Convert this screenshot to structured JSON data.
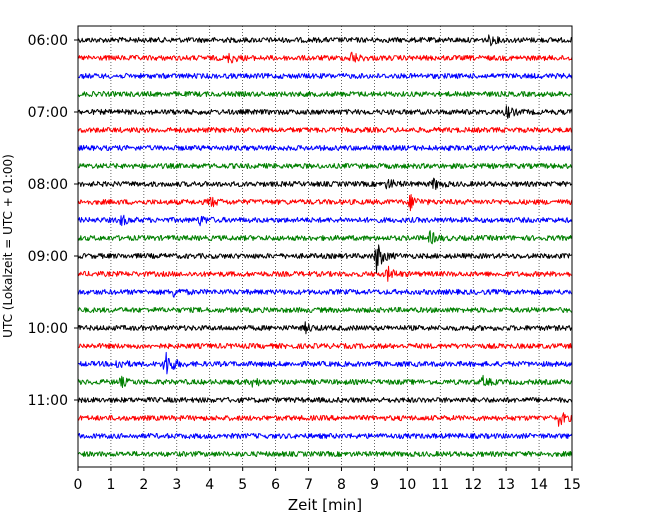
{
  "chart_data": {
    "type": "line",
    "title": "",
    "xlabel": "Zeit  [min]",
    "ylabel": "UTC (Lokalzeit = UTC + 01:00)",
    "xlim": [
      0,
      15
    ],
    "x_ticks": [
      "0",
      "1",
      "2",
      "3",
      "4",
      "5",
      "6",
      "7",
      "8",
      "9",
      "10",
      "11",
      "12",
      "13",
      "14",
      "15"
    ],
    "y_tick_labels": [
      "06:00",
      "07:00",
      "08:00",
      "09:00",
      "10:00",
      "11:00"
    ],
    "vertical_grid": "dotted",
    "trace_colors": [
      "#000000",
      "#ff0000",
      "#0000ff",
      "#008000"
    ],
    "traces": [
      {
        "start": "06:00",
        "color": "#000000",
        "events": [
          {
            "t": 12.5,
            "amp": 0.25
          }
        ]
      },
      {
        "start": "06:15",
        "color": "#ff0000",
        "events": [
          {
            "t": 4.6,
            "amp": 0.3
          },
          {
            "t": 8.3,
            "amp": 0.35
          }
        ]
      },
      {
        "start": "06:30",
        "color": "#0000ff",
        "events": []
      },
      {
        "start": "06:45",
        "color": "#008000",
        "events": []
      },
      {
        "start": "07:00",
        "color": "#000000",
        "events": [
          {
            "t": 13.0,
            "amp": 0.35
          }
        ]
      },
      {
        "start": "07:15",
        "color": "#ff0000",
        "events": []
      },
      {
        "start": "07:30",
        "color": "#0000ff",
        "events": []
      },
      {
        "start": "07:45",
        "color": "#008000",
        "events": []
      },
      {
        "start": "08:00",
        "color": "#000000",
        "events": [
          {
            "t": 9.4,
            "amp": 0.3
          },
          {
            "t": 10.8,
            "amp": 0.3
          }
        ]
      },
      {
        "start": "08:15",
        "color": "#ff0000",
        "events": [
          {
            "t": 4.0,
            "amp": 0.3
          },
          {
            "t": 10.1,
            "amp": 0.45
          }
        ]
      },
      {
        "start": "08:30",
        "color": "#0000ff",
        "events": [
          {
            "t": 1.3,
            "amp": 0.3
          },
          {
            "t": 3.7,
            "amp": 0.25
          }
        ]
      },
      {
        "start": "08:45",
        "color": "#008000",
        "events": [
          {
            "t": 10.7,
            "amp": 0.35
          }
        ]
      },
      {
        "start": "09:00",
        "color": "#000000",
        "events": [
          {
            "t": 9.05,
            "amp": 1.0
          }
        ]
      },
      {
        "start": "09:15",
        "color": "#ff0000",
        "events": [
          {
            "t": 9.4,
            "amp": 0.4
          }
        ]
      },
      {
        "start": "09:30",
        "color": "#0000ff",
        "events": [
          {
            "t": 2.9,
            "amp": 0.25
          }
        ]
      },
      {
        "start": "09:45",
        "color": "#008000",
        "events": []
      },
      {
        "start": "10:00",
        "color": "#000000",
        "events": [
          {
            "t": 6.9,
            "amp": 0.25
          }
        ]
      },
      {
        "start": "10:15",
        "color": "#ff0000",
        "events": []
      },
      {
        "start": "10:30",
        "color": "#0000ff",
        "events": [
          {
            "t": 1.2,
            "amp": 0.3
          },
          {
            "t": 2.65,
            "amp": 1.0
          }
        ]
      },
      {
        "start": "10:45",
        "color": "#008000",
        "events": [
          {
            "t": 1.3,
            "amp": 0.25
          },
          {
            "t": 5.3,
            "amp": 0.25
          },
          {
            "t": 12.3,
            "amp": 0.25
          }
        ]
      },
      {
        "start": "11:00",
        "color": "#000000",
        "events": []
      },
      {
        "start": "11:15",
        "color": "#ff0000",
        "events": [
          {
            "t": 14.6,
            "amp": 0.45
          }
        ]
      },
      {
        "start": "11:30",
        "color": "#0000ff",
        "events": []
      },
      {
        "start": "11:45",
        "color": "#008000",
        "events": []
      }
    ]
  }
}
